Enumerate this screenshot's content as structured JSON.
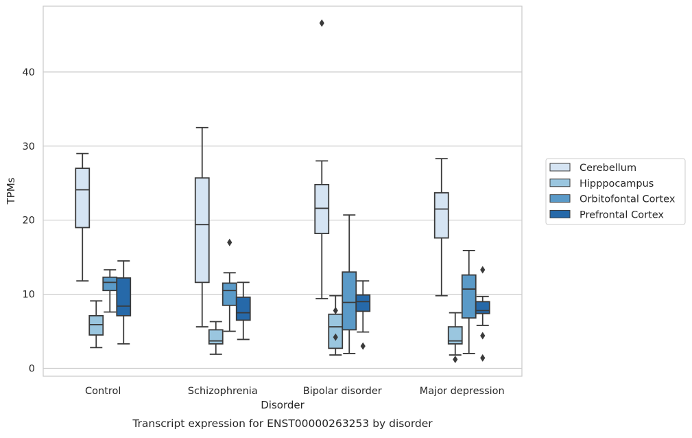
{
  "chart_data": {
    "type": "box",
    "caption": "Transcript expression for ENST00000263253 by disorder",
    "xlabel": "Disorder",
    "ylabel": "TPMs",
    "ylim": [
      -1,
      49
    ],
    "yticks": [
      0,
      10,
      20,
      30,
      40
    ],
    "grid": "horizontal",
    "legend_position": "right-center",
    "categories": [
      "Control",
      "Schizophrenia",
      "Bipolar disorder",
      "Major depression"
    ],
    "series": [
      {
        "name": "Cerebellum",
        "color": "#d5e4f3",
        "boxes": [
          {
            "whisker_low": 11.8,
            "q1": 19.0,
            "median": 24.1,
            "q3": 27.0,
            "whisker_high": 29.0,
            "outliers": []
          },
          {
            "whisker_low": 5.6,
            "q1": 11.6,
            "median": 19.4,
            "q3": 25.7,
            "whisker_high": 32.5,
            "outliers": []
          },
          {
            "whisker_low": 9.4,
            "q1": 18.2,
            "median": 21.6,
            "q3": 24.8,
            "whisker_high": 28.0,
            "outliers": [
              46.6
            ]
          },
          {
            "whisker_low": 9.8,
            "q1": 17.6,
            "median": 21.5,
            "q3": 23.7,
            "whisker_high": 28.3,
            "outliers": []
          }
        ]
      },
      {
        "name": "Hipppocampus",
        "color": "#9ac6df",
        "boxes": [
          {
            "whisker_low": 2.8,
            "q1": 4.5,
            "median": 5.9,
            "q3": 7.1,
            "whisker_high": 9.1,
            "outliers": []
          },
          {
            "whisker_low": 1.9,
            "q1": 3.3,
            "median": 3.7,
            "q3": 5.2,
            "whisker_high": 6.3,
            "outliers": []
          },
          {
            "whisker_low": 1.8,
            "q1": 2.7,
            "median": 5.6,
            "q3": 7.3,
            "whisker_high": 9.8,
            "outliers": [
              7.8,
              4.2
            ]
          },
          {
            "whisker_low": 1.8,
            "q1": 3.3,
            "median": 3.7,
            "q3": 5.6,
            "whisker_high": 7.5,
            "outliers": [
              1.2
            ]
          }
        ]
      },
      {
        "name": "Orbitofontal Cortex",
        "color": "#5a9ac8",
        "boxes": [
          {
            "whisker_low": 7.6,
            "q1": 10.5,
            "median": 11.6,
            "q3": 12.3,
            "whisker_high": 13.3,
            "outliers": []
          },
          {
            "whisker_low": 5.0,
            "q1": 8.5,
            "median": 10.5,
            "q3": 11.5,
            "whisker_high": 12.9,
            "outliers": [
              17.0
            ]
          },
          {
            "whisker_low": 2.0,
            "q1": 5.2,
            "median": 8.9,
            "q3": 13.0,
            "whisker_high": 20.7,
            "outliers": []
          },
          {
            "whisker_low": 2.0,
            "q1": 6.8,
            "median": 10.7,
            "q3": 12.6,
            "whisker_high": 15.9,
            "outliers": []
          }
        ]
      },
      {
        "name": "Prefrontal Cortex",
        "color": "#2669a9",
        "boxes": [
          {
            "whisker_low": 3.3,
            "q1": 7.1,
            "median": 8.4,
            "q3": 12.2,
            "whisker_high": 14.5,
            "outliers": []
          },
          {
            "whisker_low": 3.9,
            "q1": 6.5,
            "median": 7.5,
            "q3": 9.6,
            "whisker_high": 11.6,
            "outliers": []
          },
          {
            "whisker_low": 4.9,
            "q1": 7.7,
            "median": 9.0,
            "q3": 9.9,
            "whisker_high": 11.8,
            "outliers": [
              3.0
            ]
          },
          {
            "whisker_low": 5.8,
            "q1": 7.4,
            "median": 7.8,
            "q3": 9.0,
            "whisker_high": 9.7,
            "outliers": [
              13.3,
              4.4,
              1.4
            ]
          }
        ]
      }
    ]
  }
}
